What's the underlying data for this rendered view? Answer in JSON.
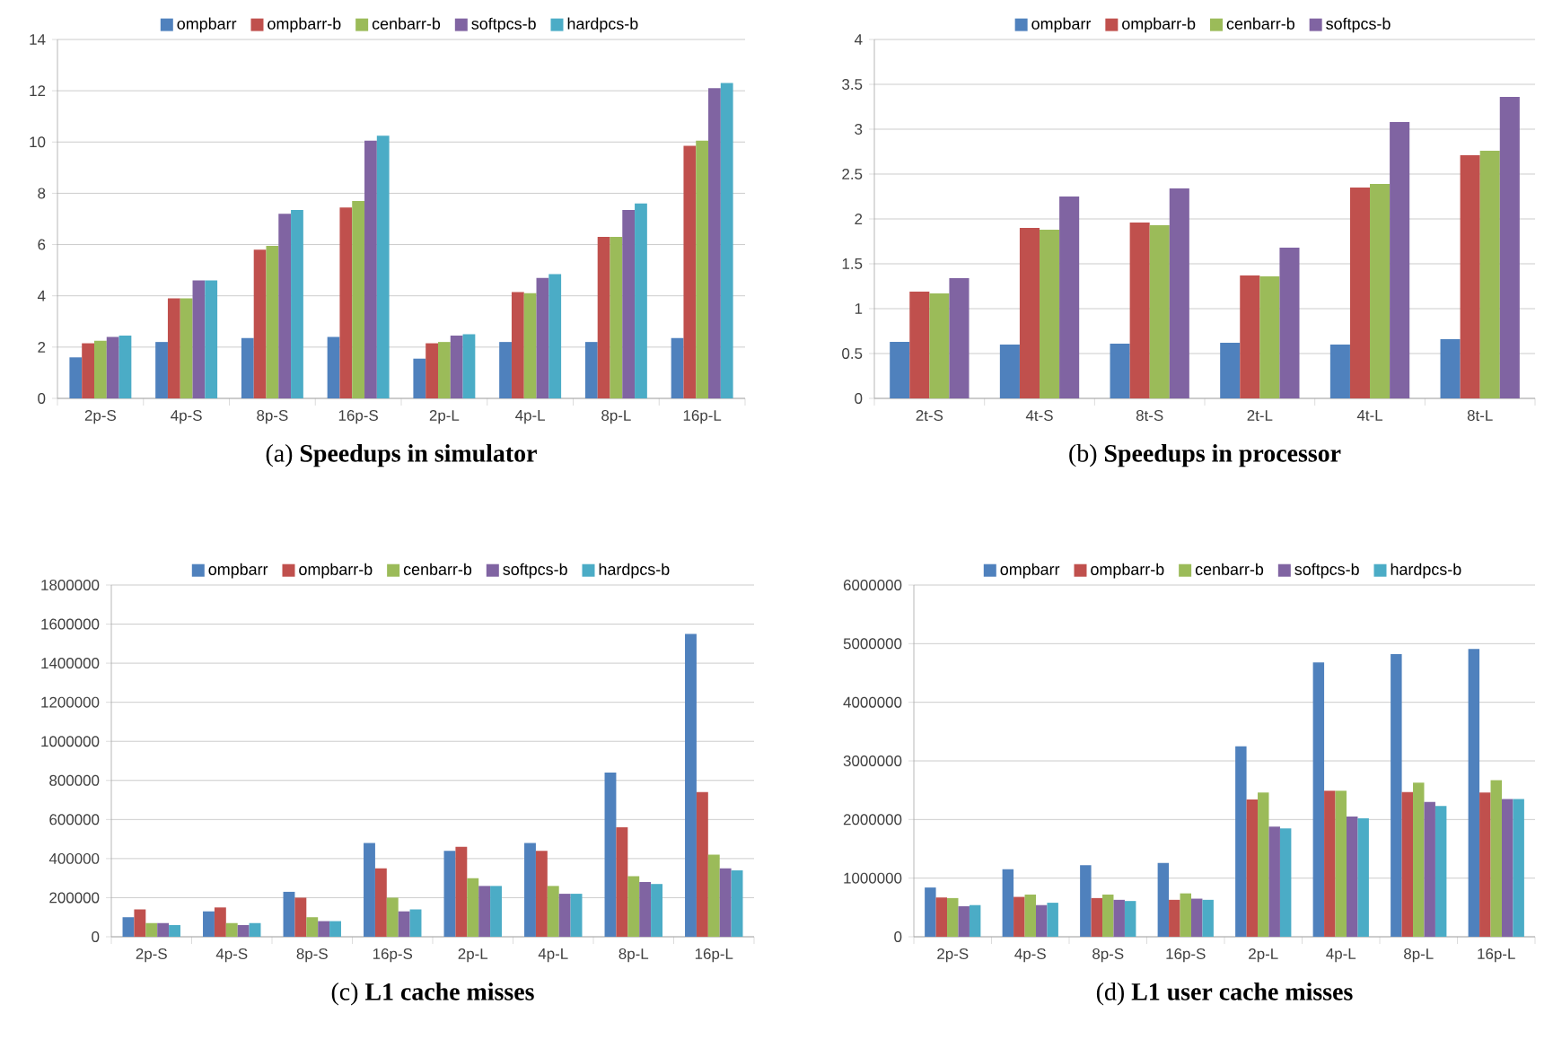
{
  "chart_data": [
    {
      "type": "bar",
      "title": "(a) **Speedups in simulator**",
      "categories": [
        "2p-S",
        "4p-S",
        "8p-S",
        "16p-S",
        "2p-L",
        "4p-L",
        "8p-L",
        "16p-L"
      ],
      "ylim": [
        0,
        14
      ],
      "yticks": [
        0,
        2,
        4,
        6,
        8,
        10,
        12,
        14
      ],
      "grid": "y",
      "legend": "top",
      "series": [
        {
          "name": "ompbarr",
          "color": "#4f81bd",
          "values": [
            1.6,
            2.2,
            2.35,
            2.4,
            1.55,
            2.2,
            2.2,
            2.35
          ]
        },
        {
          "name": "ompbarr-b",
          "color": "#c0504d",
          "values": [
            2.15,
            3.9,
            5.8,
            7.45,
            2.15,
            4.15,
            6.3,
            9.85
          ]
        },
        {
          "name": "cenbarr-b",
          "color": "#9bbb59",
          "values": [
            2.25,
            3.9,
            5.95,
            7.7,
            2.2,
            4.1,
            6.3,
            10.05
          ]
        },
        {
          "name": "softpcs-b",
          "color": "#8064a2",
          "values": [
            2.4,
            4.6,
            7.2,
            10.05,
            2.45,
            4.7,
            7.35,
            12.1
          ]
        },
        {
          "name": "hardpcs-b",
          "color": "#4bacc6",
          "values": [
            2.45,
            4.6,
            7.35,
            10.25,
            2.5,
            4.85,
            7.6,
            12.3
          ]
        }
      ]
    },
    {
      "type": "bar",
      "title": "(b) **Speedups in processor**",
      "categories": [
        "2t-S",
        "4t-S",
        "8t-S",
        "2t-L",
        "4t-L",
        "8t-L"
      ],
      "ylim": [
        0,
        4
      ],
      "yticks": [
        0,
        0.5,
        1,
        1.5,
        2,
        2.5,
        3,
        3.5,
        4
      ],
      "grid": "y",
      "legend": "top",
      "series": [
        {
          "name": "ompbarr",
          "color": "#4f81bd",
          "values": [
            0.63,
            0.6,
            0.61,
            0.62,
            0.6,
            0.66
          ]
        },
        {
          "name": "ompbarr-b",
          "color": "#c0504d",
          "values": [
            1.19,
            1.9,
            1.96,
            1.37,
            2.35,
            2.71
          ]
        },
        {
          "name": "cenbarr-b",
          "color": "#9bbb59",
          "values": [
            1.17,
            1.88,
            1.93,
            1.36,
            2.39,
            2.76
          ]
        },
        {
          "name": "softpcs-b",
          "color": "#8064a2",
          "values": [
            1.34,
            2.25,
            2.34,
            1.68,
            3.08,
            3.36
          ]
        }
      ]
    },
    {
      "type": "bar",
      "title": "(c) **L1 cache misses**",
      "categories": [
        "2p-S",
        "4p-S",
        "8p-S",
        "16p-S",
        "2p-L",
        "4p-L",
        "8p-L",
        "16p-L"
      ],
      "ylim": [
        0,
        1800000
      ],
      "yticks": [
        0,
        200000,
        400000,
        600000,
        800000,
        1000000,
        1200000,
        1400000,
        1600000,
        1800000
      ],
      "grid": "y",
      "legend": "top",
      "series": [
        {
          "name": "ompbarr",
          "color": "#4f81bd",
          "values": [
            100000,
            130000,
            230000,
            480000,
            440000,
            480000,
            840000,
            1550000
          ]
        },
        {
          "name": "ompbarr-b",
          "color": "#c0504d",
          "values": [
            140000,
            150000,
            200000,
            350000,
            460000,
            440000,
            560000,
            740000
          ]
        },
        {
          "name": "cenbarr-b",
          "color": "#9bbb59",
          "values": [
            70000,
            70000,
            100000,
            200000,
            300000,
            260000,
            310000,
            420000
          ]
        },
        {
          "name": "softpcs-b",
          "color": "#8064a2",
          "values": [
            70000,
            60000,
            80000,
            130000,
            260000,
            220000,
            280000,
            350000
          ]
        },
        {
          "name": "hardpcs-b",
          "color": "#4bacc6",
          "values": [
            60000,
            70000,
            80000,
            140000,
            260000,
            220000,
            270000,
            340000
          ]
        }
      ]
    },
    {
      "type": "bar",
      "title": "(d) **L1 user cache misses**",
      "categories": [
        "2p-S",
        "4p-S",
        "8p-S",
        "16p-S",
        "2p-L",
        "4p-L",
        "8p-L",
        "16p-L"
      ],
      "ylim": [
        0,
        6000000
      ],
      "yticks": [
        0,
        1000000,
        2000000,
        3000000,
        4000000,
        5000000,
        6000000
      ],
      "grid": "y",
      "legend": "top",
      "series": [
        {
          "name": "ompbarr",
          "color": "#4f81bd",
          "values": [
            840000,
            1150000,
            1220000,
            1260000,
            3250000,
            4680000,
            4820000,
            4910000
          ]
        },
        {
          "name": "ompbarr-b",
          "color": "#c0504d",
          "values": [
            670000,
            680000,
            660000,
            630000,
            2340000,
            2490000,
            2470000,
            2460000
          ]
        },
        {
          "name": "cenbarr-b",
          "color": "#9bbb59",
          "values": [
            660000,
            720000,
            720000,
            740000,
            2460000,
            2490000,
            2630000,
            2670000
          ]
        },
        {
          "name": "softpcs-b",
          "color": "#8064a2",
          "values": [
            520000,
            540000,
            630000,
            650000,
            1880000,
            2050000,
            2300000,
            2350000
          ]
        },
        {
          "name": "hardpcs-b",
          "color": "#4bacc6",
          "values": [
            540000,
            580000,
            610000,
            630000,
            1850000,
            2020000,
            2230000,
            2350000
          ]
        }
      ]
    }
  ]
}
